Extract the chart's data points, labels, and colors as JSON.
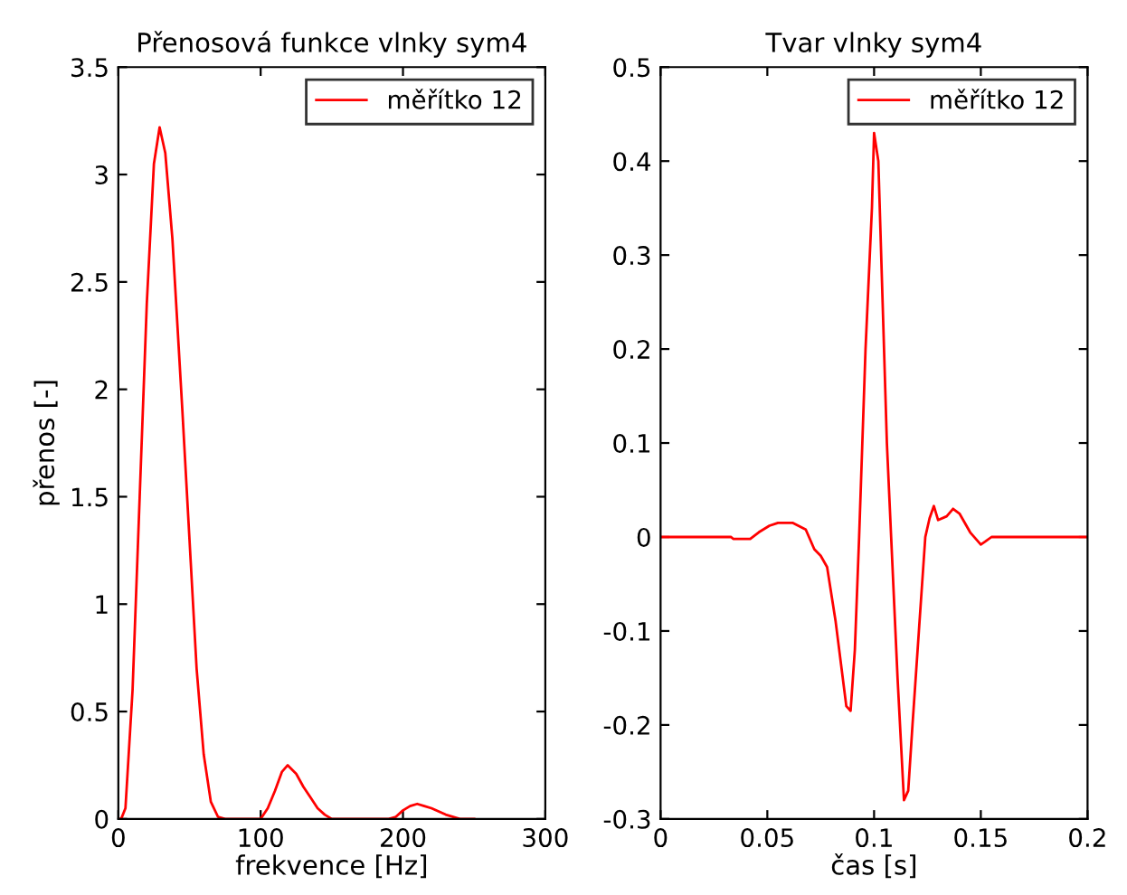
{
  "chart_data": [
    {
      "type": "line",
      "title": "Přenosová funkce vlnky sym4",
      "xlabel": "frekvence [Hz]",
      "ylabel": "přenos [-]",
      "xlim": [
        0,
        300
      ],
      "xticks": [
        0,
        100,
        200,
        300
      ],
      "ylim": [
        0,
        3.5
      ],
      "yticks": [
        0,
        0.5,
        1,
        1.5,
        2,
        2.5,
        3,
        3.5
      ],
      "legend": "top right",
      "grid": false,
      "x": [
        0,
        2,
        5,
        10,
        15,
        20,
        25,
        29,
        33,
        38,
        45,
        50,
        55,
        60,
        65,
        70,
        75,
        100,
        105,
        110,
        115,
        119,
        125,
        130,
        135,
        140,
        145,
        150,
        190,
        195,
        200,
        205,
        210,
        215,
        220,
        230,
        240,
        250
      ],
      "series": [
        {
          "name": "měřítko 12",
          "color": "#ff0000",
          "values": [
            0,
            0,
            0.05,
            0.6,
            1.5,
            2.4,
            3.05,
            3.22,
            3.1,
            2.7,
            1.9,
            1.3,
            0.7,
            0.3,
            0.08,
            0.01,
            0,
            0,
            0.05,
            0.13,
            0.22,
            0.25,
            0.21,
            0.15,
            0.1,
            0.05,
            0.02,
            0,
            0,
            0.01,
            0.04,
            0.06,
            0.07,
            0.06,
            0.05,
            0.02,
            0,
            0
          ]
        }
      ]
    },
    {
      "type": "line",
      "title": "Tvar vlnky sym4",
      "xlabel": "čas [s]",
      "xlim": [
        0,
        0.2
      ],
      "xticks": [
        0,
        0.05,
        0.1,
        0.15,
        0.2
      ],
      "ylim": [
        -0.3,
        0.5
      ],
      "yticks": [
        -0.3,
        -0.2,
        -0.1,
        0,
        0.1,
        0.2,
        0.3,
        0.4,
        0.5
      ],
      "legend": "top right",
      "grid": false,
      "x": [
        0,
        0.033,
        0.034,
        0.042,
        0.046,
        0.051,
        0.055,
        0.062,
        0.068,
        0.072,
        0.075,
        0.078,
        0.082,
        0.087,
        0.089,
        0.091,
        0.093,
        0.096,
        0.099,
        0.1,
        0.102,
        0.104,
        0.106,
        0.108,
        0.111,
        0.114,
        0.116,
        0.118,
        0.121,
        0.124,
        0.126,
        0.128,
        0.13,
        0.134,
        0.137,
        0.14,
        0.145,
        0.15,
        0.152,
        0.155,
        0.2
      ],
      "series": [
        {
          "name": "měřítko 12",
          "color": "#ff0000",
          "values": [
            0,
            0,
            -0.002,
            -0.002,
            0.005,
            0.012,
            0.015,
            0.015,
            0.008,
            -0.013,
            -0.02,
            -0.032,
            -0.09,
            -0.18,
            -0.185,
            -0.12,
            0,
            0.2,
            0.35,
            0.43,
            0.4,
            0.25,
            0.1,
            0,
            -0.15,
            -0.28,
            -0.27,
            -0.2,
            -0.1,
            0,
            0.02,
            0.033,
            0.018,
            0.022,
            0.03,
            0.025,
            0.005,
            -0.008,
            -0.005,
            0,
            0
          ]
        }
      ]
    }
  ]
}
